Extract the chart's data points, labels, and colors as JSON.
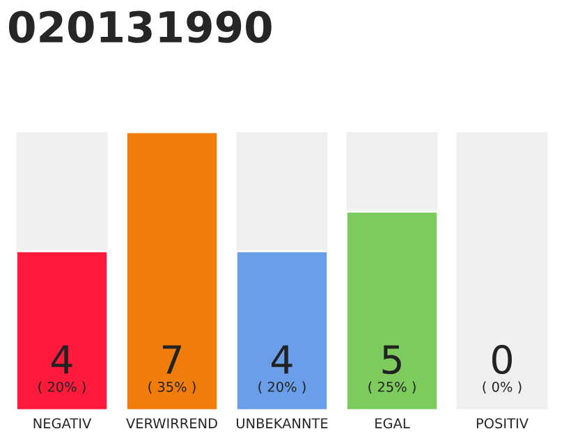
{
  "chart_data": {
    "type": "bar",
    "title": "020131990",
    "categories": [
      "NEGATIV",
      "VERWIRREND",
      "UNBEKANNTE",
      "EGAL",
      "POSITIV"
    ],
    "values": [
      4,
      7,
      4,
      5,
      0
    ],
    "colors": [
      "#ff1a3c",
      "#f07c0a",
      "#6a9ee8",
      "#7dcb5d",
      null
    ],
    "value_labels": [
      "4\n( 20% )",
      "7\n( 35% )",
      "4\n( 20% )",
      "5\n( 25% )",
      "0\n( 0% )"
    ],
    "ylim": [
      0,
      7
    ],
    "tick_labels": "x",
    "grid": false,
    "legend": false
  }
}
